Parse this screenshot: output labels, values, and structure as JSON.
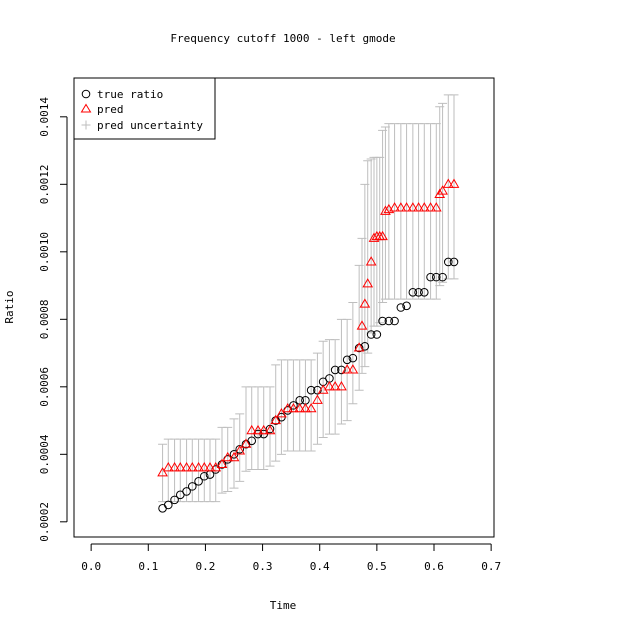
{
  "chart_data": {
    "type": "scatter",
    "title": "Frequency cutoff 1000 - left gmode",
    "xlabel": "Time",
    "ylabel": "Ratio",
    "xlim": [
      -0.03,
      0.705
    ],
    "ylim": [
      0.000155,
      0.001515
    ],
    "x_ticks": [
      0.0,
      0.1,
      0.2,
      0.3,
      0.4,
      0.5,
      0.6,
      0.7
    ],
    "x_tick_labels": [
      "0.0",
      "0.1",
      "0.2",
      "0.3",
      "0.4",
      "0.5",
      "0.6",
      "0.7"
    ],
    "y_ticks": [
      0.0002,
      0.0004,
      0.0006,
      0.0008,
      0.001,
      0.0012,
      0.0014
    ],
    "y_tick_labels": [
      "0.0002",
      "0.0004",
      "0.0006",
      "0.0008",
      "0.0010",
      "0.0012",
      "0.0014"
    ],
    "legend_position": "top-left",
    "legend": [
      "true ratio",
      "pred",
      "pred uncertainty"
    ],
    "colors": {
      "true": "#000000",
      "pred": "#ff0000",
      "uncertainty": "#bebebe",
      "axis": "#000000"
    },
    "series": [
      {
        "name": "true ratio",
        "marker": "circle",
        "points": [
          [
            0.125,
            0.00024
          ],
          [
            0.135,
            0.00025
          ],
          [
            0.146,
            0.000265
          ],
          [
            0.156,
            0.00028
          ],
          [
            0.167,
            0.00029
          ],
          [
            0.177,
            0.000305
          ],
          [
            0.188,
            0.00032
          ],
          [
            0.198,
            0.000335
          ],
          [
            0.208,
            0.00034
          ],
          [
            0.218,
            0.000355
          ],
          [
            0.229,
            0.00037
          ],
          [
            0.239,
            0.000385
          ],
          [
            0.25,
            0.0004
          ],
          [
            0.26,
            0.000415
          ],
          [
            0.271,
            0.00043
          ],
          [
            0.281,
            0.00044
          ],
          [
            0.292,
            0.00046
          ],
          [
            0.302,
            0.00046
          ],
          [
            0.313,
            0.000475
          ],
          [
            0.323,
            0.0005
          ],
          [
            0.333,
            0.00051
          ],
          [
            0.344,
            0.00053
          ],
          [
            0.354,
            0.000545
          ],
          [
            0.365,
            0.00056
          ],
          [
            0.375,
            0.00056
          ],
          [
            0.385,
            0.00059
          ],
          [
            0.396,
            0.00059
          ],
          [
            0.406,
            0.000615
          ],
          [
            0.417,
            0.000625
          ],
          [
            0.427,
            0.00065
          ],
          [
            0.438,
            0.00065
          ],
          [
            0.448,
            0.00068
          ],
          [
            0.458,
            0.000685
          ],
          [
            0.469,
            0.000715
          ],
          [
            0.479,
            0.00072
          ],
          [
            0.49,
            0.000755
          ],
          [
            0.5,
            0.000755
          ],
          [
            0.51,
            0.000795
          ],
          [
            0.521,
            0.000795
          ],
          [
            0.531,
            0.000795
          ],
          [
            0.542,
            0.000835
          ],
          [
            0.552,
            0.00084
          ],
          [
            0.563,
            0.00088
          ],
          [
            0.573,
            0.00088
          ],
          [
            0.583,
            0.00088
          ],
          [
            0.594,
            0.000925
          ],
          [
            0.604,
            0.000925
          ],
          [
            0.615,
            0.000925
          ],
          [
            0.625,
            0.00097
          ],
          [
            0.635,
            0.00097
          ]
        ]
      },
      {
        "name": "pred",
        "marker": "triangle",
        "points": [
          [
            0.125,
            0.000345
          ],
          [
            0.135,
            0.00036
          ],
          [
            0.146,
            0.00036
          ],
          [
            0.156,
            0.00036
          ],
          [
            0.167,
            0.00036
          ],
          [
            0.177,
            0.00036
          ],
          [
            0.188,
            0.00036
          ],
          [
            0.198,
            0.00036
          ],
          [
            0.208,
            0.00036
          ],
          [
            0.218,
            0.00036
          ],
          [
            0.229,
            0.00037
          ],
          [
            0.239,
            0.00039
          ],
          [
            0.25,
            0.00039
          ],
          [
            0.26,
            0.00041
          ],
          [
            0.271,
            0.00043
          ],
          [
            0.281,
            0.00047
          ],
          [
            0.292,
            0.00047
          ],
          [
            0.302,
            0.00047
          ],
          [
            0.313,
            0.00047
          ],
          [
            0.323,
            0.0005
          ],
          [
            0.333,
            0.00052
          ],
          [
            0.344,
            0.000535
          ],
          [
            0.354,
            0.000535
          ],
          [
            0.365,
            0.000535
          ],
          [
            0.375,
            0.000535
          ],
          [
            0.385,
            0.000535
          ],
          [
            0.396,
            0.00056
          ],
          [
            0.406,
            0.00059
          ],
          [
            0.417,
            0.0006
          ],
          [
            0.427,
            0.0006
          ],
          [
            0.438,
            0.0006
          ],
          [
            0.448,
            0.00065
          ],
          [
            0.458,
            0.00065
          ],
          [
            0.469,
            0.000715
          ],
          [
            0.474,
            0.00078
          ],
          [
            0.479,
            0.000845
          ],
          [
            0.484,
            0.000905
          ],
          [
            0.49,
            0.00097
          ],
          [
            0.495,
            0.00104
          ],
          [
            0.5,
            0.001045
          ],
          [
            0.505,
            0.001045
          ],
          [
            0.51,
            0.001045
          ],
          [
            0.515,
            0.00112
          ],
          [
            0.521,
            0.001125
          ],
          [
            0.531,
            0.00113
          ],
          [
            0.542,
            0.00113
          ],
          [
            0.552,
            0.00113
          ],
          [
            0.563,
            0.00113
          ],
          [
            0.573,
            0.00113
          ],
          [
            0.583,
            0.00113
          ],
          [
            0.594,
            0.00113
          ],
          [
            0.604,
            0.00113
          ],
          [
            0.61,
            0.00117
          ],
          [
            0.615,
            0.00118
          ],
          [
            0.625,
            0.0012
          ],
          [
            0.635,
            0.0012
          ]
        ]
      },
      {
        "name": "pred uncertainty",
        "marker": "errorbar",
        "points": [
          [
            0.125,
            0.00026,
            0.00043
          ],
          [
            0.135,
            0.00026,
            0.000445
          ],
          [
            0.146,
            0.00026,
            0.000445
          ],
          [
            0.156,
            0.00026,
            0.000445
          ],
          [
            0.167,
            0.00026,
            0.000445
          ],
          [
            0.177,
            0.00026,
            0.000445
          ],
          [
            0.188,
            0.00026,
            0.000445
          ],
          [
            0.198,
            0.00026,
            0.000445
          ],
          [
            0.208,
            0.00026,
            0.000445
          ],
          [
            0.218,
            0.00026,
            0.000445
          ],
          [
            0.229,
            0.000285,
            0.00048
          ],
          [
            0.239,
            0.00029,
            0.00048
          ],
          [
            0.25,
            0.0003,
            0.000505
          ],
          [
            0.26,
            0.00032,
            0.00052
          ],
          [
            0.271,
            0.00035,
            0.0006
          ],
          [
            0.281,
            0.000355,
            0.0006
          ],
          [
            0.292,
            0.000355,
            0.0006
          ],
          [
            0.302,
            0.000355,
            0.0006
          ],
          [
            0.313,
            0.000365,
            0.0006
          ],
          [
            0.323,
            0.00038,
            0.000665
          ],
          [
            0.333,
            0.0004,
            0.00068
          ],
          [
            0.344,
            0.00041,
            0.00068
          ],
          [
            0.354,
            0.00041,
            0.00068
          ],
          [
            0.365,
            0.00041,
            0.00068
          ],
          [
            0.375,
            0.00041,
            0.00068
          ],
          [
            0.385,
            0.00041,
            0.00068
          ],
          [
            0.396,
            0.00043,
            0.0007
          ],
          [
            0.406,
            0.00045,
            0.000735
          ],
          [
            0.417,
            0.00046,
            0.00074
          ],
          [
            0.427,
            0.00046,
            0.00074
          ],
          [
            0.438,
            0.00049,
            0.0008
          ],
          [
            0.448,
            0.0005,
            0.0008
          ],
          [
            0.458,
            0.00055,
            0.00085
          ],
          [
            0.469,
            0.00059,
            0.00096
          ],
          [
            0.474,
            0.00064,
            0.00104
          ],
          [
            0.479,
            0.00066,
            0.0012
          ],
          [
            0.484,
            0.0007,
            0.00127
          ],
          [
            0.49,
            0.00076,
            0.001275
          ],
          [
            0.495,
            0.00078,
            0.00128
          ],
          [
            0.5,
            0.00078,
            0.00128
          ],
          [
            0.505,
            0.00079,
            0.00128
          ],
          [
            0.51,
            0.00085,
            0.00136
          ],
          [
            0.515,
            0.00086,
            0.00137
          ],
          [
            0.521,
            0.00086,
            0.00138
          ],
          [
            0.531,
            0.00086,
            0.00138
          ],
          [
            0.542,
            0.00086,
            0.00138
          ],
          [
            0.552,
            0.00086,
            0.00138
          ],
          [
            0.563,
            0.00086,
            0.00138
          ],
          [
            0.573,
            0.00086,
            0.00138
          ],
          [
            0.583,
            0.00086,
            0.00138
          ],
          [
            0.594,
            0.00086,
            0.00138
          ],
          [
            0.604,
            0.00086,
            0.00138
          ],
          [
            0.61,
            0.0009,
            0.00143
          ],
          [
            0.615,
            0.00091,
            0.00144
          ],
          [
            0.625,
            0.00092,
            0.001465
          ],
          [
            0.635,
            0.00092,
            0.001465
          ]
        ]
      }
    ]
  }
}
